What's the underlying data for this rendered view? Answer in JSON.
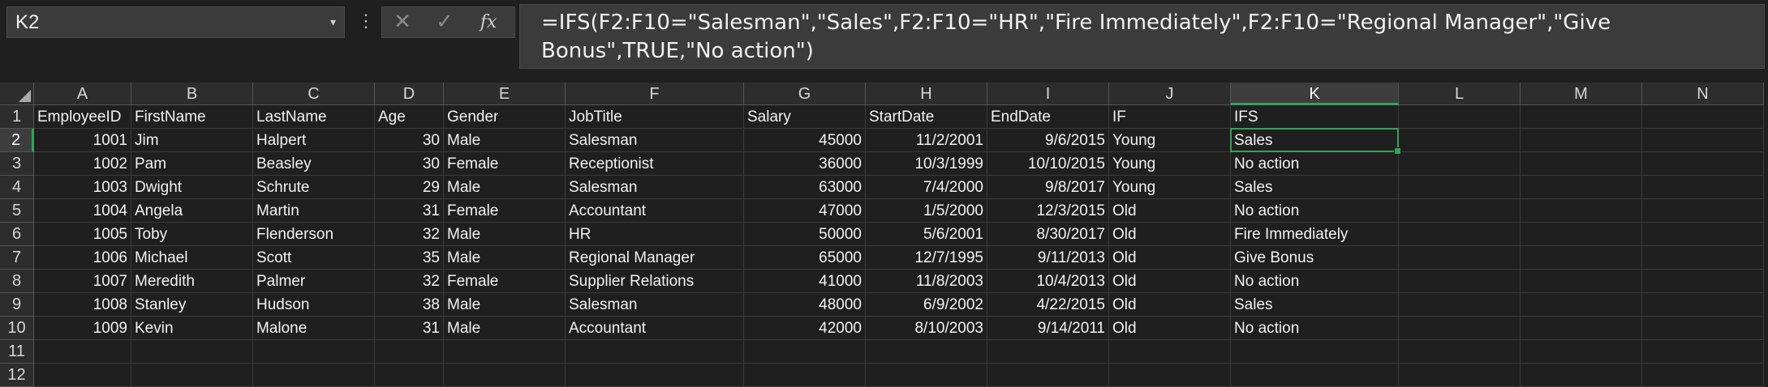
{
  "formula_bar": {
    "name_box": "K2",
    "name_box_dropdown_icon": "chevron-down-icon",
    "more_icon": "vertical-dots-icon",
    "cancel_icon": "cancel-x-icon",
    "enter_icon": "checkmark-icon",
    "function_icon": "fx-icon",
    "formula": "=IFS(F2:F10=\"Salesman\",\"Sales\",F2:F10=\"HR\",\"Fire Immediately\",F2:F10=\"Regional Manager\",\"Give Bonus\",TRUE,\"No action\")"
  },
  "grid": {
    "selected_column": "K",
    "selected_row": "2",
    "accent_color": "#37a05a",
    "columns": [
      "A",
      "B",
      "C",
      "D",
      "E",
      "F",
      "G",
      "H",
      "I",
      "J",
      "K",
      "L",
      "M",
      "N"
    ],
    "row_numbers": [
      "1",
      "2",
      "3",
      "4",
      "5",
      "6",
      "7",
      "8",
      "9",
      "10",
      "11",
      "12"
    ],
    "rows": [
      [
        "EmployeeID",
        "FirstName",
        "LastName",
        "Age",
        "Gender",
        "JobTitle",
        "Salary",
        "StartDate",
        "EndDate",
        "IF",
        "IFS",
        "",
        "",
        ""
      ],
      [
        "1001",
        "Jim",
        "Halpert",
        "30",
        "Male",
        "Salesman",
        "45000",
        "11/2/2001",
        "9/6/2015",
        "Young",
        "Sales",
        "",
        "",
        ""
      ],
      [
        "1002",
        "Pam",
        "Beasley",
        "30",
        "Female",
        "Receptionist",
        "36000",
        "10/3/1999",
        "10/10/2015",
        "Young",
        "No action",
        "",
        "",
        ""
      ],
      [
        "1003",
        "Dwight",
        "Schrute",
        "29",
        "Male",
        "Salesman",
        "63000",
        "7/4/2000",
        "9/8/2017",
        "Young",
        "Sales",
        "",
        "",
        ""
      ],
      [
        "1004",
        "Angela",
        "Martin",
        "31",
        "Female",
        "Accountant",
        "47000",
        "1/5/2000",
        "12/3/2015",
        "Old",
        "No action",
        "",
        "",
        ""
      ],
      [
        "1005",
        "Toby",
        "Flenderson",
        "32",
        "Male",
        "HR",
        "50000",
        "5/6/2001",
        "8/30/2017",
        "Old",
        "Fire Immediately",
        "",
        "",
        ""
      ],
      [
        "1006",
        "Michael",
        "Scott",
        "35",
        "Male",
        "Regional Manager",
        "65000",
        "12/7/1995",
        "9/11/2013",
        "Old",
        "Give Bonus",
        "",
        "",
        ""
      ],
      [
        "1007",
        "Meredith",
        "Palmer",
        "32",
        "Female",
        "Supplier Relations",
        "41000",
        "11/8/2003",
        "10/4/2013",
        "Old",
        "No action",
        "",
        "",
        ""
      ],
      [
        "1008",
        "Stanley",
        "Hudson",
        "38",
        "Male",
        "Salesman",
        "48000",
        "6/9/2002",
        "4/22/2015",
        "Old",
        "Sales",
        "",
        "",
        ""
      ],
      [
        "1009",
        "Kevin",
        "Malone",
        "31",
        "Male",
        "Accountant",
        "42000",
        "8/10/2003",
        "9/14/2011",
        "Old",
        "No action",
        "",
        "",
        ""
      ],
      [
        "",
        "",
        "",
        "",
        "",
        "",
        "",
        "",
        "",
        "",
        "",
        "",
        "",
        ""
      ],
      [
        "",
        "",
        "",
        "",
        "",
        "",
        "",
        "",
        "",
        "",
        "",
        "",
        "",
        ""
      ]
    ]
  }
}
